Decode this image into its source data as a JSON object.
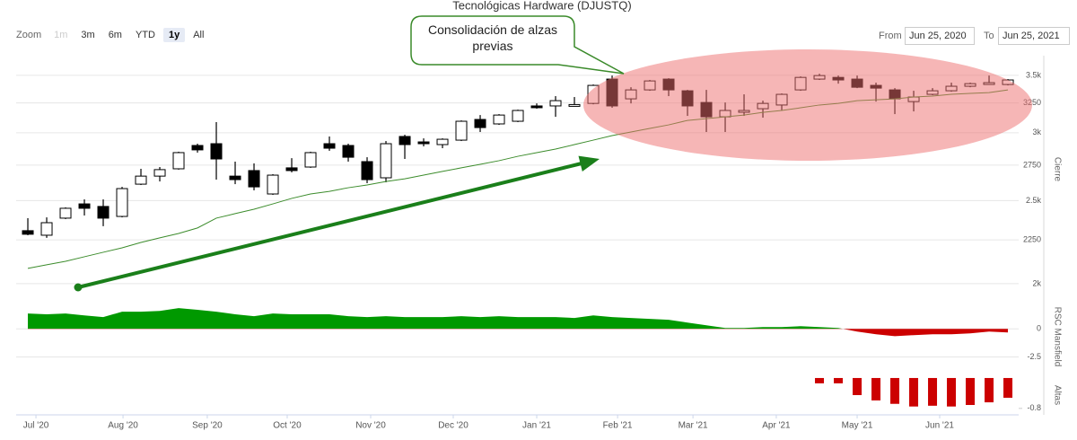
{
  "title": "Tecnológicas Hardware (DJUSTQ)",
  "range_selector": {
    "zoom_label": "Zoom",
    "buttons": [
      "1m",
      "3m",
      "6m",
      "YTD",
      "1y",
      "All"
    ],
    "selected": 4,
    "disabled": [
      0
    ]
  },
  "date_range": {
    "from_label": "From",
    "from": "Jun 25, 2020",
    "to_label": "To",
    "to": "Jun 25, 2021"
  },
  "annotation": "Consolidación de alzas previas",
  "chart_data": [
    {
      "type": "candlestick",
      "y_label": "Cierre",
      "log_scale": true,
      "grid": true,
      "xlim": [
        -0.62,
        52.57
      ],
      "ylim": [
        1910,
        3690
      ],
      "yticks": [
        {
          "value": 2000,
          "label": "2k"
        },
        2250,
        {
          "value": 2500,
          "label": "2.5k"
        },
        2750,
        {
          "value": 3000,
          "label": "3k"
        },
        3250,
        {
          "value": 3500,
          "label": "3.5k"
        }
      ],
      "up_color": "#ffffff",
      "down_color": "#000000",
      "stroke_color": "#000000",
      "open": [
        2306,
        2278,
        2385,
        2478,
        2461,
        2396,
        2613,
        2670,
        2723,
        2899,
        2913,
        2670,
        2710,
        2545,
        2730,
        2736,
        2913,
        2899,
        2776,
        2658,
        2970,
        2927,
        2906,
        2941,
        3109,
        3072,
        3094,
        3224,
        3224,
        3232,
        3246,
        3465,
        3286,
        3366,
        3465,
        3358,
        3254,
        3131,
        3177,
        3200,
        3232,
        3366,
        3465,
        3481,
        3465,
        3407,
        3366,
        3262,
        3326,
        3358,
        3399,
        3423,
        3415
      ],
      "high": [
        2385,
        2390,
        2455,
        2508,
        2508,
        2594,
        2723,
        2736,
        2851,
        2913,
        3087,
        2776,
        2763,
        2684,
        2802,
        2851,
        2970,
        2913,
        2809,
        2934,
        2984,
        2955,
        2955,
        3101,
        3146,
        3154,
        3192,
        3246,
        3310,
        3302,
        3415,
        3498,
        3390,
        3457,
        3473,
        3366,
        3366,
        3254,
        3326,
        3270,
        3334,
        3490,
        3515,
        3498,
        3498,
        3432,
        3382,
        3358,
        3382,
        3432,
        3432,
        3498,
        3465
      ],
      "low": [
        2278,
        2262,
        2379,
        2402,
        2334,
        2390,
        2607,
        2632,
        2717,
        2844,
        2645,
        2613,
        2570,
        2539,
        2697,
        2730,
        2858,
        2776,
        2620,
        2626,
        2796,
        2892,
        2878,
        2934,
        3006,
        3064,
        3087,
        3200,
        3131,
        3224,
        3238,
        3208,
        3246,
        3358,
        3310,
        3139,
        3006,
        3006,
        3139,
        3124,
        3185,
        3358,
        3457,
        3423,
        3382,
        3262,
        3154,
        3177,
        3318,
        3350,
        3390,
        3415,
        3407
      ],
      "close": [
        2284,
        2356,
        2449,
        2449,
        2385,
        2582,
        2670,
        2717,
        2844,
        2865,
        2796,
        2645,
        2594,
        2677,
        2710,
        2844,
        2878,
        2809,
        2645,
        2913,
        2906,
        2913,
        2948,
        3094,
        3042,
        3146,
        3185,
        3216,
        3270,
        3236,
        3407,
        3224,
        3366,
        3448,
        3366,
        3224,
        3131,
        3185,
        3185,
        3246,
        3326,
        3481,
        3498,
        3457,
        3390,
        3382,
        3286,
        3302,
        3358,
        3399,
        3423,
        3432,
        3457
      ],
      "moving_average": {
        "color": "#3c8c2c",
        "values": [
          2084,
          2104,
          2124,
          2150,
          2176,
          2202,
          2234,
          2262,
          2289,
          2323,
          2385,
          2414,
          2443,
          2478,
          2515,
          2545,
          2563,
          2588,
          2607,
          2632,
          2651,
          2677,
          2704,
          2730,
          2756,
          2783,
          2816,
          2844,
          2871,
          2906,
          2941,
          2977,
          3006,
          3035,
          3064,
          3101,
          3116,
          3131,
          3146,
          3169,
          3185,
          3208,
          3232,
          3246,
          3270,
          3278,
          3286,
          3302,
          3310,
          3326,
          3334,
          3342,
          3366
        ]
      }
    },
    {
      "type": "area",
      "y_label": "RSC Mansfield",
      "grid": true,
      "xlim": [
        -0.62,
        52.57
      ],
      "ylim": [
        -3.5,
        2.1
      ],
      "yticks": [
        0,
        -2.5
      ],
      "positive_color": "#009900",
      "negative_color": "#cc0000",
      "values": [
        1.37,
        1.3,
        1.37,
        1.2,
        1.05,
        1.53,
        1.53,
        1.6,
        1.85,
        1.7,
        1.53,
        1.3,
        1.13,
        1.37,
        1.3,
        1.3,
        1.3,
        1.13,
        1.05,
        1.13,
        1.05,
        1.05,
        1.05,
        1.13,
        1.05,
        1.13,
        1.05,
        1.05,
        1.05,
        0.97,
        1.2,
        1.05,
        0.97,
        0.89,
        0.81,
        0.56,
        0.32,
        0.08,
        0.08,
        0.16,
        0.16,
        0.24,
        0.16,
        0.08,
        -0.24,
        -0.48,
        -0.65,
        -0.56,
        -0.48,
        -0.48,
        -0.4,
        -0.24,
        -0.32
      ]
    },
    {
      "type": "bar",
      "y_label": "Altas",
      "grid": false,
      "xlim": [
        -0.62,
        52.57
      ],
      "ylim": [
        -0.97,
        0.07
      ],
      "yticks": [
        -0.8
      ],
      "color": "#cc0000",
      "xticks": [
        {
          "value": 0.43,
          "label": "Jul '20"
        },
        {
          "value": 5.05,
          "label": "Aug '20"
        },
        {
          "value": 9.52,
          "label": "Sep '20"
        },
        {
          "value": 13.76,
          "label": "Oct '20"
        },
        {
          "value": 18.19,
          "label": "Nov '20"
        },
        {
          "value": 22.57,
          "label": "Dec '20"
        },
        {
          "value": 27.0,
          "label": "Jan '21"
        },
        {
          "value": 31.29,
          "label": "Feb '21"
        },
        {
          "value": 35.29,
          "label": "Mar '21"
        },
        {
          "value": 39.71,
          "label": "Apr '21"
        },
        {
          "value": 44.0,
          "label": "May '21"
        },
        {
          "value": 48.38,
          "label": "Jun '21"
        }
      ],
      "values": [
        null,
        null,
        null,
        null,
        null,
        null,
        null,
        null,
        null,
        null,
        null,
        null,
        null,
        null,
        null,
        null,
        null,
        null,
        null,
        null,
        null,
        null,
        null,
        null,
        null,
        null,
        null,
        null,
        null,
        null,
        null,
        null,
        null,
        null,
        null,
        null,
        null,
        null,
        null,
        null,
        null,
        null,
        -0.14,
        -0.14,
        -0.45,
        -0.59,
        -0.68,
        -0.75,
        -0.73,
        -0.75,
        -0.71,
        -0.64,
        -0.52
      ]
    }
  ]
}
